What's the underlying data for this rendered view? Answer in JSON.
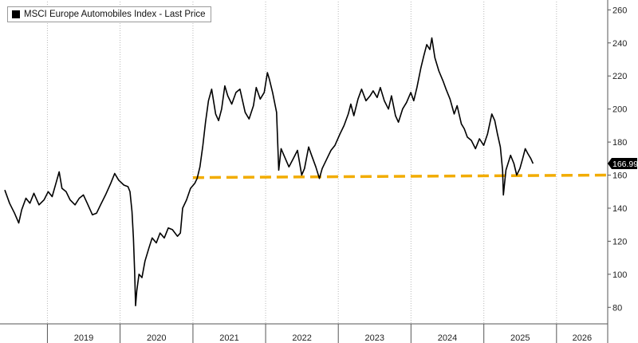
{
  "chart_data": {
    "type": "line",
    "legend": {
      "label": "MSCI Europe Automobiles Index - Last Price",
      "placement": "top-left"
    },
    "y_axis": {
      "side": "right",
      "range": [
        70,
        265
      ],
      "ticks": [
        80,
        100,
        120,
        140,
        160,
        180,
        200,
        220,
        240,
        260
      ]
    },
    "x_axis": {
      "range": [
        "2018-06-01",
        "2026-09-15"
      ],
      "year_labels": [
        "2019",
        "2020",
        "2021",
        "2022",
        "2023",
        "2024",
        "2025",
        "2026"
      ]
    },
    "grid": {
      "vertical_dotted": true,
      "horizontal": false
    },
    "last_price": {
      "value": 166.99,
      "label": "166.99"
    },
    "reference_line": {
      "value_start": 158.5,
      "value_end": 160.0,
      "from": "2021-01-01",
      "to": "2026-09-15",
      "color": "#f2ac00",
      "style": "dashed"
    },
    "series": [
      {
        "color": "#000000",
        "points": [
          [
            "2018-06-01",
            151
          ],
          [
            "2018-06-25",
            143
          ],
          [
            "2018-07-20",
            137
          ],
          [
            "2018-08-10",
            131
          ],
          [
            "2018-08-25",
            139
          ],
          [
            "2018-09-15",
            146
          ],
          [
            "2018-10-05",
            143
          ],
          [
            "2018-10-25",
            149
          ],
          [
            "2018-11-20",
            142
          ],
          [
            "2018-12-15",
            145
          ],
          [
            "2019-01-05",
            150
          ],
          [
            "2019-01-25",
            147
          ],
          [
            "2019-02-15",
            156
          ],
          [
            "2019-03-01",
            162
          ],
          [
            "2019-03-15",
            152
          ],
          [
            "2019-04-05",
            150
          ],
          [
            "2019-04-25",
            145
          ],
          [
            "2019-05-20",
            142
          ],
          [
            "2019-06-10",
            146
          ],
          [
            "2019-07-01",
            148
          ],
          [
            "2019-07-20",
            143
          ],
          [
            "2019-08-15",
            136
          ],
          [
            "2019-09-05",
            137
          ],
          [
            "2019-09-25",
            142
          ],
          [
            "2019-10-20",
            148
          ],
          [
            "2019-11-15",
            155
          ],
          [
            "2019-12-05",
            161
          ],
          [
            "2019-12-25",
            157
          ],
          [
            "2020-01-20",
            154
          ],
          [
            "2020-02-10",
            153
          ],
          [
            "2020-02-20",
            150
          ],
          [
            "2020-03-01",
            138
          ],
          [
            "2020-03-08",
            122
          ],
          [
            "2020-03-14",
            102
          ],
          [
            "2020-03-19",
            81
          ],
          [
            "2020-03-25",
            90
          ],
          [
            "2020-04-05",
            100
          ],
          [
            "2020-04-20",
            98
          ],
          [
            "2020-05-05",
            108
          ],
          [
            "2020-05-25",
            116
          ],
          [
            "2020-06-10",
            122
          ],
          [
            "2020-07-01",
            119
          ],
          [
            "2020-07-20",
            125
          ],
          [
            "2020-08-10",
            122
          ],
          [
            "2020-08-30",
            128
          ],
          [
            "2020-09-20",
            127
          ],
          [
            "2020-10-15",
            123
          ],
          [
            "2020-10-30",
            125
          ],
          [
            "2020-11-10",
            140
          ],
          [
            "2020-11-30",
            145
          ],
          [
            "2020-12-20",
            152
          ],
          [
            "2021-01-10",
            155
          ],
          [
            "2021-01-22",
            158
          ],
          [
            "2021-02-05",
            165
          ],
          [
            "2021-02-20",
            178
          ],
          [
            "2021-03-05",
            192
          ],
          [
            "2021-03-20",
            205
          ],
          [
            "2021-04-05",
            212
          ],
          [
            "2021-04-25",
            197
          ],
          [
            "2021-05-10",
            193
          ],
          [
            "2021-05-25",
            200
          ],
          [
            "2021-06-10",
            214
          ],
          [
            "2021-06-25",
            208
          ],
          [
            "2021-07-15",
            203
          ],
          [
            "2021-08-05",
            210
          ],
          [
            "2021-08-25",
            212
          ],
          [
            "2021-09-20",
            198
          ],
          [
            "2021-10-10",
            194
          ],
          [
            "2021-11-01",
            202
          ],
          [
            "2021-11-15",
            213
          ],
          [
            "2021-12-05",
            206
          ],
          [
            "2021-12-25",
            210
          ],
          [
            "2022-01-10",
            222
          ],
          [
            "2022-01-20",
            218
          ],
          [
            "2022-02-05",
            210
          ],
          [
            "2022-02-25",
            198
          ],
          [
            "2022-03-08",
            163
          ],
          [
            "2022-03-20",
            176
          ],
          [
            "2022-04-10",
            170
          ],
          [
            "2022-04-28",
            165
          ],
          [
            "2022-05-20",
            170
          ],
          [
            "2022-06-10",
            175
          ],
          [
            "2022-07-01",
            160
          ],
          [
            "2022-07-15",
            164
          ],
          [
            "2022-08-05",
            177
          ],
          [
            "2022-08-20",
            172
          ],
          [
            "2022-09-10",
            165
          ],
          [
            "2022-09-28",
            158
          ],
          [
            "2022-10-12",
            164
          ],
          [
            "2022-11-05",
            170
          ],
          [
            "2022-11-25",
            175
          ],
          [
            "2022-12-15",
            178
          ],
          [
            "2023-01-10",
            185
          ],
          [
            "2023-01-30",
            190
          ],
          [
            "2023-02-20",
            197
          ],
          [
            "2023-03-05",
            203
          ],
          [
            "2023-03-20",
            196
          ],
          [
            "2023-04-10",
            206
          ],
          [
            "2023-04-28",
            212
          ],
          [
            "2023-05-20",
            205
          ],
          [
            "2023-06-10",
            208
          ],
          [
            "2023-06-25",
            211
          ],
          [
            "2023-07-15",
            207
          ],
          [
            "2023-07-31",
            213
          ],
          [
            "2023-08-20",
            205
          ],
          [
            "2023-09-10",
            200
          ],
          [
            "2023-09-25",
            208
          ],
          [
            "2023-10-15",
            196
          ],
          [
            "2023-10-30",
            192
          ],
          [
            "2023-11-20",
            200
          ],
          [
            "2023-12-10",
            204
          ],
          [
            "2023-12-31",
            210
          ],
          [
            "2024-01-15",
            205
          ],
          [
            "2024-01-31",
            213
          ],
          [
            "2024-02-20",
            225
          ],
          [
            "2024-03-05",
            232
          ],
          [
            "2024-03-20",
            239
          ],
          [
            "2024-04-05",
            236
          ],
          [
            "2024-04-15",
            243
          ],
          [
            "2024-04-30",
            231
          ],
          [
            "2024-05-20",
            223
          ],
          [
            "2024-06-10",
            217
          ],
          [
            "2024-06-25",
            212
          ],
          [
            "2024-07-15",
            206
          ],
          [
            "2024-08-05",
            197
          ],
          [
            "2024-08-20",
            202
          ],
          [
            "2024-09-10",
            191
          ],
          [
            "2024-09-25",
            188
          ],
          [
            "2024-10-10",
            183
          ],
          [
            "2024-10-30",
            181
          ],
          [
            "2024-11-20",
            176
          ],
          [
            "2024-12-10",
            182
          ],
          [
            "2024-12-31",
            178
          ],
          [
            "2025-01-20",
            185
          ],
          [
            "2025-02-10",
            197
          ],
          [
            "2025-02-25",
            193
          ],
          [
            "2025-03-10",
            185
          ],
          [
            "2025-03-25",
            177
          ],
          [
            "2025-04-05",
            163
          ],
          [
            "2025-04-09",
            148
          ],
          [
            "2025-04-22",
            163
          ],
          [
            "2025-05-15",
            172
          ],
          [
            "2025-06-01",
            167
          ],
          [
            "2025-06-15",
            160
          ],
          [
            "2025-07-01",
            164
          ],
          [
            "2025-07-15",
            170
          ],
          [
            "2025-07-28",
            176
          ],
          [
            "2025-08-10",
            173
          ],
          [
            "2025-08-25",
            170
          ],
          [
            "2025-09-05",
            166.99
          ]
        ]
      }
    ]
  }
}
